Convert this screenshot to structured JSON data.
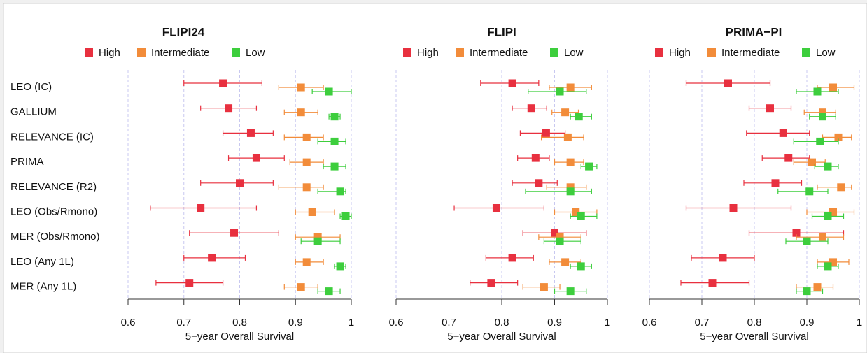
{
  "chart_data": [
    {
      "type": "forest",
      "title": "FLIPI24",
      "xlabel": "5−year Overall Survival",
      "categories": [
        "LEO (IC)",
        "GALLIUM",
        "RELEVANCE (IC)",
        "PRIMA",
        "RELEVANCE (R2)",
        "LEO (Obs/Rmono)",
        "MER (Obs/Rmono)",
        "LEO (Any 1L)",
        "MER (Any 1L)"
      ],
      "xlim": [
        0.6,
        1
      ],
      "xticks": [
        0.6,
        0.7,
        0.8,
        0.9,
        1
      ],
      "grid": true,
      "series": [
        {
          "name": "High",
          "color": "#e8303f",
          "values": [
            0.77,
            0.78,
            0.82,
            0.83,
            0.8,
            0.73,
            0.79,
            0.75,
            0.71
          ],
          "lower": [
            0.7,
            0.73,
            0.77,
            0.78,
            0.73,
            0.64,
            0.71,
            0.7,
            0.65
          ],
          "upper": [
            0.84,
            0.83,
            0.86,
            0.88,
            0.86,
            0.83,
            0.87,
            0.81,
            0.77
          ]
        },
        {
          "name": "Intermediate",
          "color": "#f28c3a",
          "values": [
            0.91,
            0.91,
            0.92,
            0.92,
            0.92,
            0.93,
            0.94,
            0.92,
            0.91
          ],
          "lower": [
            0.87,
            0.88,
            0.88,
            0.89,
            0.87,
            0.9,
            0.9,
            0.9,
            0.88
          ],
          "upper": [
            0.95,
            0.94,
            0.95,
            0.95,
            0.95,
            0.97,
            0.98,
            0.95,
            0.94
          ]
        },
        {
          "name": "Low",
          "color": "#3dce3d",
          "values": [
            0.96,
            0.97,
            0.97,
            0.97,
            0.98,
            0.99,
            0.94,
            0.98,
            0.96
          ],
          "lower": [
            0.93,
            0.96,
            0.94,
            0.95,
            0.94,
            0.98,
            0.91,
            0.97,
            0.94
          ],
          "upper": [
            1.0,
            0.98,
            0.99,
            0.99,
            0.99,
            1.0,
            0.98,
            0.99,
            0.98
          ]
        }
      ]
    },
    {
      "type": "forest",
      "title": "FLIPI",
      "xlabel": "5−year Overall Survival",
      "xlim": [
        0.6,
        1
      ],
      "xticks": [
        0.6,
        0.7,
        0.8,
        0.9,
        1
      ],
      "grid": true,
      "series": [
        {
          "name": "High",
          "color": "#e8303f",
          "values": [
            0.82,
            0.856,
            0.884,
            0.864,
            0.87,
            0.79,
            0.9,
            0.82,
            0.78
          ],
          "lower": [
            0.76,
            0.82,
            0.835,
            0.83,
            0.82,
            0.71,
            0.84,
            0.77,
            0.74
          ],
          "upper": [
            0.87,
            0.885,
            0.92,
            0.89,
            0.905,
            0.88,
            0.96,
            0.86,
            0.83
          ]
        },
        {
          "name": "Intermediate",
          "color": "#f28c3a",
          "values": [
            0.93,
            0.92,
            0.925,
            0.93,
            0.93,
            0.94,
            0.91,
            0.92,
            0.88
          ],
          "lower": [
            0.89,
            0.895,
            0.875,
            0.9,
            0.885,
            0.9,
            0.87,
            0.89,
            0.84
          ],
          "upper": [
            0.97,
            0.945,
            0.955,
            0.955,
            0.96,
            0.98,
            0.95,
            0.95,
            0.91
          ]
        },
        {
          "name": "Low",
          "color": "#3dce3d",
          "values": [
            0.91,
            0.946,
            null,
            0.965,
            0.93,
            0.95,
            0.91,
            0.95,
            0.93
          ],
          "lower": [
            0.85,
            0.93,
            null,
            0.95,
            0.845,
            0.93,
            0.88,
            0.93,
            0.9
          ],
          "upper": [
            0.96,
            0.97,
            null,
            0.98,
            0.97,
            0.98,
            0.95,
            0.97,
            0.96
          ]
        }
      ]
    },
    {
      "type": "forest",
      "title": "PRIMA−PI",
      "xlabel": "5−year Overall Survival",
      "xlim": [
        0.6,
        1
      ],
      "xticks": [
        0.6,
        0.7,
        0.8,
        0.9,
        1
      ],
      "grid": true,
      "series": [
        {
          "name": "High",
          "color": "#e8303f",
          "values": [
            0.75,
            0.83,
            0.855,
            0.865,
            0.84,
            0.76,
            0.88,
            0.74,
            0.72
          ],
          "lower": [
            0.67,
            0.79,
            0.785,
            0.815,
            0.78,
            0.67,
            0.79,
            0.68,
            0.66
          ],
          "upper": [
            0.83,
            0.87,
            0.905,
            0.905,
            0.89,
            0.87,
            0.97,
            0.8,
            0.79
          ]
        },
        {
          "name": "Intermediate",
          "color": "#f28c3a",
          "values": [
            0.95,
            0.93,
            0.96,
            0.91,
            0.965,
            0.95,
            0.93,
            0.95,
            0.92
          ],
          "lower": [
            0.92,
            0.895,
            0.93,
            0.875,
            0.92,
            0.9,
            0.88,
            0.92,
            0.88
          ],
          "upper": [
            0.99,
            0.955,
            0.985,
            0.935,
            0.985,
            0.99,
            0.97,
            0.98,
            0.95
          ]
        },
        {
          "name": "Low",
          "color": "#3dce3d",
          "values": [
            0.92,
            0.93,
            0.925,
            0.94,
            0.905,
            0.94,
            0.9,
            0.94,
            0.9
          ],
          "lower": [
            0.88,
            0.905,
            0.875,
            0.915,
            0.845,
            0.91,
            0.86,
            0.92,
            0.88
          ],
          "upper": [
            0.96,
            0.955,
            0.96,
            0.96,
            0.94,
            0.97,
            0.94,
            0.96,
            0.93
          ]
        }
      ]
    }
  ]
}
